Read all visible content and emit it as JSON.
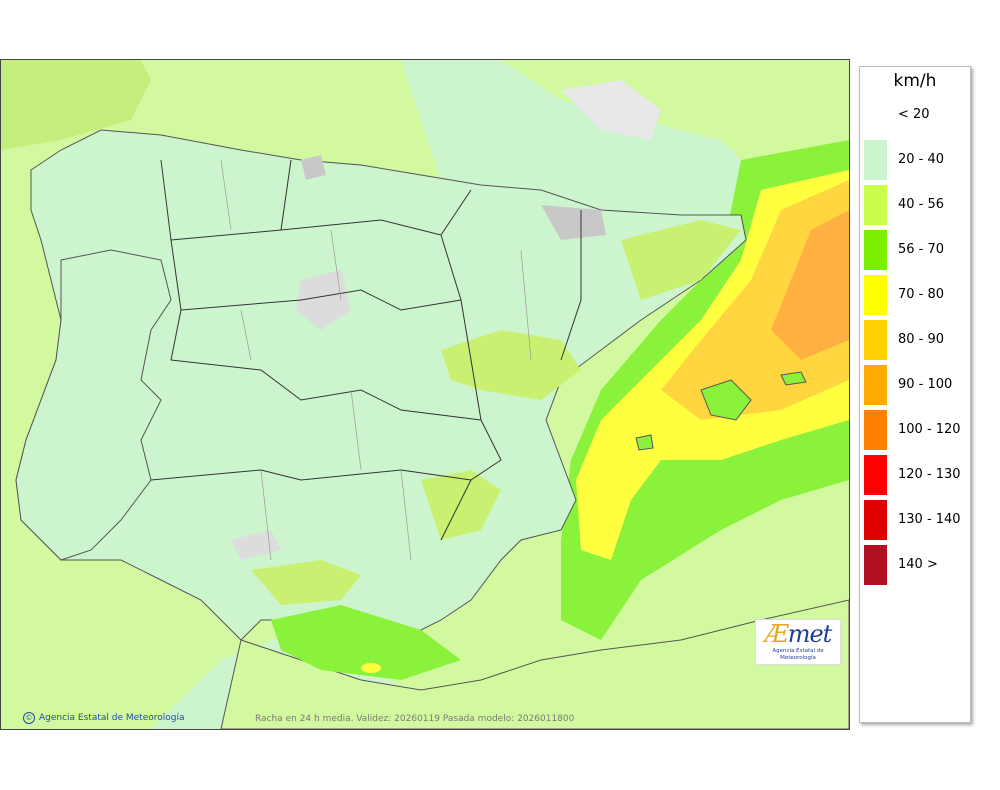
{
  "legend": {
    "title": "km/h",
    "items": [
      {
        "label": "< 20",
        "color": "#ffffff"
      },
      {
        "label": "20 - 40",
        "color": "#cdf5cd"
      },
      {
        "label": "40 - 56",
        "color": "#c9ff4a"
      },
      {
        "label": "56 - 70",
        "color": "#7af000"
      },
      {
        "label": "70 - 80",
        "color": "#ffff00"
      },
      {
        "label": "80 - 90",
        "color": "#ffd200"
      },
      {
        "label": "90 - 100",
        "color": "#ffaa00"
      },
      {
        "label": "100 - 120",
        "color": "#ff8000"
      },
      {
        "label": "120 - 130",
        "color": "#ff0000"
      },
      {
        "label": "130 - 140",
        "color": "#e00000"
      },
      {
        "label": "140 >",
        "color": "#b01020"
      }
    ]
  },
  "footer": {
    "credit": "Agencia Estatal de Meteorología",
    "caption": "Racha en 24 h media. Validez: 20260119 Pasada modelo: 2026011800"
  },
  "logo": {
    "text": "AEmet",
    "subtitle": "Agencia Estatal de Meteorología"
  }
}
